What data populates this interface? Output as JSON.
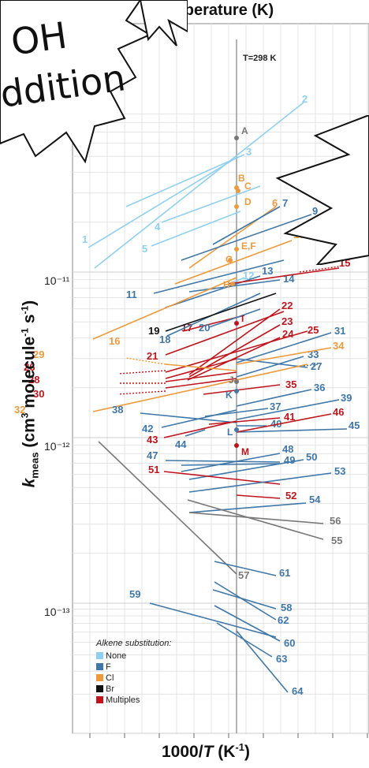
{
  "chart_data": {
    "type": "line",
    "top_axis_title": "mperature (K)",
    "x_axis_title": "1000/T (K⁻¹)",
    "y_axis_title": "k meas (cm³ molecule⁻¹ s⁻¹)",
    "reference_line_label": "T=298 K",
    "y_scale": "log",
    "y_ticks": [
      "10⁻¹¹",
      "10⁻¹²",
      "10⁻¹³"
    ],
    "grid": true,
    "legend_title": "Alkene substitution:",
    "legend": [
      {
        "label": "None",
        "color": "#8fd0f0"
      },
      {
        "label": "F",
        "color": "#3f77a8"
      },
      {
        "label": "Cl",
        "color": "#ee9a3a"
      },
      {
        "label": "Br",
        "color": "#111111"
      },
      {
        "label": "Multiples",
        "color": "#c0141c"
      }
    ],
    "point_labels": [
      "A",
      "B",
      "C",
      "D",
      "E,F",
      "G",
      "H",
      "I",
      "J",
      "K",
      "L",
      "M"
    ],
    "series_labels": [
      "1",
      "2",
      "3",
      "4",
      "5",
      "6",
      "7",
      "9",
      "10",
      "11",
      "12",
      "13",
      "14",
      "15",
      "16",
      "17",
      "18",
      "19",
      "20",
      "21",
      "22",
      "23",
      "24",
      "25",
      "26",
      "27",
      "28",
      "29",
      "30",
      "31",
      "32",
      "33",
      "34",
      "35",
      "36",
      "37",
      "38",
      "39",
      "40",
      "41",
      "42",
      "43",
      "44",
      "45",
      "46",
      "47",
      "48",
      "49",
      "50",
      "51",
      "52",
      "53",
      "54",
      "55",
      "56",
      "57",
      "58",
      "59",
      "60",
      "61",
      "62",
      "63",
      "64"
    ]
  },
  "burst_left": {
    "line1": "OH",
    "line2": "ddition"
  },
  "colors": {
    "none": "#8fd0f0",
    "f": "#3f77a8",
    "cl": "#ee9a3a",
    "br": "#111111",
    "multi": "#c0141c",
    "grey": "#777777"
  }
}
